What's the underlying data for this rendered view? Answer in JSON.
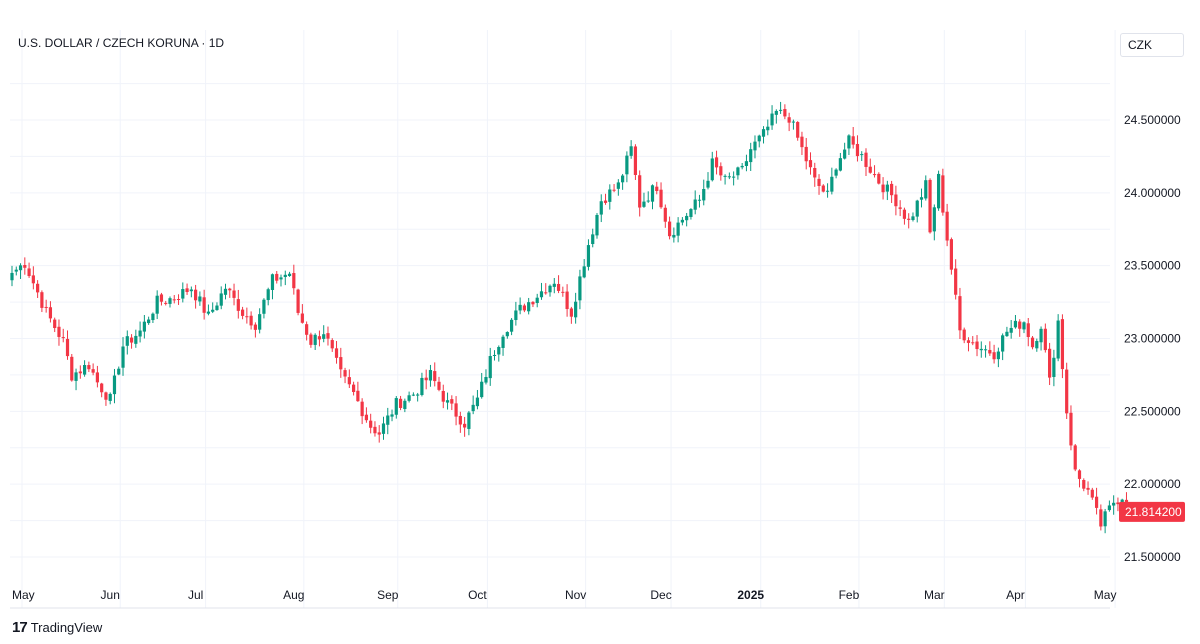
{
  "header": {
    "title": "U.S. DOLLAR / CZECH KORUNA · 1D"
  },
  "currency_button": {
    "label": "CZK"
  },
  "brand": {
    "logo": "17",
    "name": "TradingView"
  },
  "last_price": {
    "label": "21.814200",
    "color": "#f23645"
  },
  "colors": {
    "up": "#089981",
    "down": "#f23645",
    "grid": "#f0f3fa"
  },
  "chart_data": {
    "type": "candlestick",
    "title": "U.S. DOLLAR / CZECH KORUNA · 1D",
    "grid": true,
    "ylim": [
      21.35,
      24.85
    ],
    "y_ticks": [
      "24.500000",
      "24.000000",
      "23.500000",
      "23.000000",
      "22.500000",
      "22.000000",
      "21.500000"
    ],
    "x_ticks": [
      {
        "label": "May",
        "index": 0
      },
      {
        "label": "Jun",
        "index": 23
      },
      {
        "label": "Jul",
        "index": 43
      },
      {
        "label": "Aug",
        "index": 66
      },
      {
        "label": "Sep",
        "index": 88
      },
      {
        "label": "Oct",
        "index": 109
      },
      {
        "label": "Nov",
        "index": 132
      },
      {
        "label": "Dec",
        "index": 152
      },
      {
        "label": "2025",
        "index": 173,
        "bold": true
      },
      {
        "label": "Feb",
        "index": 196
      },
      {
        "label": "Mar",
        "index": 216
      },
      {
        "label": "Apr",
        "index": 235
      },
      {
        "label": "May",
        "index": 256
      }
    ],
    "anchors": [
      [
        0,
        23.45
      ],
      [
        3,
        23.52
      ],
      [
        8,
        23.18
      ],
      [
        12,
        22.98
      ],
      [
        14,
        22.75
      ],
      [
        18,
        22.82
      ],
      [
        20,
        22.7
      ],
      [
        23,
        22.58
      ],
      [
        26,
        22.95
      ],
      [
        30,
        23.05
      ],
      [
        34,
        23.25
      ],
      [
        38,
        23.28
      ],
      [
        42,
        23.35
      ],
      [
        46,
        23.15
      ],
      [
        50,
        23.35
      ],
      [
        54,
        23.18
      ],
      [
        57,
        23.1
      ],
      [
        61,
        23.4
      ],
      [
        65,
        23.45
      ],
      [
        67,
        23.18
      ],
      [
        70,
        22.98
      ],
      [
        73,
        23.05
      ],
      [
        77,
        22.75
      ],
      [
        80,
        22.62
      ],
      [
        84,
        22.4
      ],
      [
        86,
        22.35
      ],
      [
        90,
        22.55
      ],
      [
        94,
        22.62
      ],
      [
        98,
        22.75
      ],
      [
        102,
        22.55
      ],
      [
        106,
        22.42
      ],
      [
        109,
        22.58
      ],
      [
        112,
        22.85
      ],
      [
        115,
        23.05
      ],
      [
        119,
        23.2
      ],
      [
        123,
        23.3
      ],
      [
        127,
        23.4
      ],
      [
        131,
        23.18
      ],
      [
        135,
        23.65
      ],
      [
        138,
        23.95
      ],
      [
        142,
        24.05
      ],
      [
        145,
        24.3
      ],
      [
        147,
        23.92
      ],
      [
        151,
        24.05
      ],
      [
        154,
        23.72
      ],
      [
        157,
        23.82
      ],
      [
        161,
        23.95
      ],
      [
        164,
        24.2
      ],
      [
        167,
        24.08
      ],
      [
        171,
        24.15
      ],
      [
        173,
        24.3
      ],
      [
        176,
        24.4
      ],
      [
        179,
        24.55
      ],
      [
        182,
        24.52
      ],
      [
        185,
        24.3
      ],
      [
        188,
        24.08
      ],
      [
        191,
        23.98
      ],
      [
        193,
        24.2
      ],
      [
        196,
        24.35
      ],
      [
        199,
        24.25
      ],
      [
        203,
        24.08
      ],
      [
        207,
        23.95
      ],
      [
        210,
        23.8
      ],
      [
        214,
        24.05
      ],
      [
        215,
        23.72
      ],
      [
        217,
        24.1
      ],
      [
        220,
        23.48
      ],
      [
        222,
        23.05
      ],
      [
        226,
        22.95
      ],
      [
        230,
        22.9
      ],
      [
        233,
        23.05
      ],
      [
        237,
        23.12
      ],
      [
        239,
        22.95
      ],
      [
        241,
        23.1
      ],
      [
        243,
        22.7
      ],
      [
        245,
        23.12
      ],
      [
        247,
        22.5
      ],
      [
        249,
        22.08
      ],
      [
        252,
        21.95
      ],
      [
        255,
        21.72
      ],
      [
        258,
        21.88
      ],
      [
        260,
        21.92
      ],
      [
        262,
        21.81
      ]
    ]
  }
}
